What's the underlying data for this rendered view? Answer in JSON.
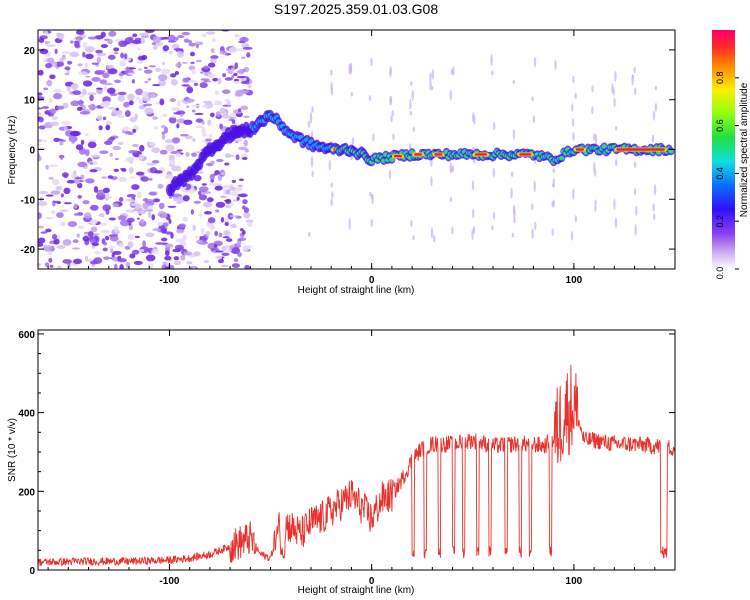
{
  "title": "S197.2025.359.01.03.G08",
  "chart_data": [
    {
      "type": "heatmap",
      "xlabel": "Height of straight line (km)",
      "ylabel": "Frequency (Hz)",
      "xlim": [
        -165,
        150
      ],
      "ylim": [
        -24,
        24
      ],
      "xticks": [
        -100,
        0,
        100
      ],
      "yticks": [
        -20,
        -10,
        0,
        10,
        20
      ],
      "colorbar": {
        "label": "Normalized spectral amplitude",
        "ticks": [
          0.0,
          0.2,
          0.4,
          0.6,
          0.8
        ],
        "range": [
          0,
          1
        ]
      },
      "ridge": {
        "description_points_x": [
          -100,
          -90,
          -80,
          -70,
          -60,
          -50,
          -40,
          -30,
          -20,
          -10,
          0,
          20,
          50,
          80,
          90,
          100,
          150
        ],
        "description_points_y": [
          -8,
          -5,
          0,
          3,
          4,
          7,
          3,
          1,
          0,
          0,
          -2,
          -1,
          -1,
          -1,
          -2,
          0,
          0
        ]
      }
    },
    {
      "type": "line",
      "xlabel": "Height of straight line (km)",
      "ylabel": "SNR (10 * v/v)",
      "xlim": [
        -165,
        150
      ],
      "ylim": [
        0,
        610
      ],
      "xticks": [
        -100,
        0,
        100
      ],
      "yticks": [
        0,
        200,
        400,
        600
      ],
      "series": [
        {
          "name": "SNR",
          "color": "#e8312c",
          "x": [
            -165,
            -140,
            -120,
            -100,
            -90,
            -80,
            -70,
            -60,
            -55,
            -50,
            -45,
            -40,
            -35,
            -30,
            -25,
            -20,
            -15,
            -10,
            -5,
            0,
            5,
            10,
            15,
            20,
            25,
            30,
            40,
            50,
            60,
            70,
            80,
            85,
            90,
            95,
            100,
            105,
            110,
            120,
            130,
            140,
            150
          ],
          "values": [
            20,
            22,
            22,
            25,
            30,
            40,
            60,
            80,
            40,
            30,
            120,
            110,
            90,
            120,
            130,
            150,
            170,
            190,
            160,
            130,
            180,
            190,
            230,
            280,
            310,
            320,
            320,
            330,
            315,
            320,
            320,
            315,
            330,
            400,
            420,
            330,
            330,
            320,
            320,
            315,
            310
          ]
        }
      ]
    }
  ]
}
